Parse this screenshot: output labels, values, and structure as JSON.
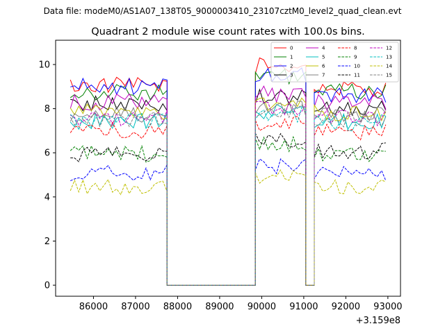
{
  "suptitle": "Data file: modeM0/AS1A07_138T05_9000003410_23107cztM0_level2_quad_clean.evt",
  "chart_data": {
    "type": "line",
    "title": "Quadrant 2 module wise count rates with 100.0s bins.",
    "xlabel": "",
    "ylabel": "",
    "x_offset_label": "+3.159e8",
    "x_tick_values": [
      86000,
      87000,
      88000,
      89000,
      90000,
      91000,
      92000,
      93000
    ],
    "x_tick_labels": [
      "86000",
      "87000",
      "88000",
      "89000",
      "90000",
      "91000",
      "92000",
      "93000"
    ],
    "y_tick_values": [
      0,
      2,
      4,
      6,
      8,
      10
    ],
    "y_tick_labels": [
      "0",
      "2",
      "4",
      "6",
      "8",
      "10"
    ],
    "xlim": [
      85100,
      93300
    ],
    "ylim": [
      -0.5,
      11.1
    ],
    "grid": false,
    "legend": "top-right",
    "legend_columns": 4,
    "bin_size": 100,
    "segments": [
      {
        "start": 85450,
        "end": 87750
      },
      {
        "start": 87750,
        "end": 89850
      },
      {
        "start": 89850,
        "end": 91050
      },
      {
        "start": 91050,
        "end": 91250
      },
      {
        "start": 91250,
        "end": 92950
      }
    ],
    "series": [
      {
        "name": "0",
        "color": "#ff0000",
        "dash": "solid",
        "levels": [
          9.05,
          0,
          9.95,
          0,
          8.9
        ]
      },
      {
        "name": "1",
        "color": "#008000",
        "dash": "solid",
        "levels": [
          8.75,
          0,
          9.45,
          0,
          8.75
        ]
      },
      {
        "name": "2",
        "color": "#0000ff",
        "dash": "solid",
        "levels": [
          9.0,
          0,
          9.5,
          0,
          8.65
        ]
      },
      {
        "name": "3",
        "color": "#000000",
        "dash": "solid",
        "levels": [
          8.2,
          0,
          8.5,
          0,
          8.05
        ]
      },
      {
        "name": "4",
        "color": "#bf00bf",
        "dash": "solid",
        "levels": [
          8.3,
          0,
          8.65,
          0,
          8.3
        ]
      },
      {
        "name": "5",
        "color": "#00bfbf",
        "dash": "solid",
        "levels": [
          7.45,
          0,
          7.9,
          0,
          7.4
        ]
      },
      {
        "name": "6",
        "color": "#bfbf00",
        "dash": "solid",
        "levels": [
          7.85,
          0,
          8.2,
          0,
          7.8
        ]
      },
      {
        "name": "7",
        "color": "#808080",
        "dash": "solid",
        "levels": [
          7.75,
          0,
          8.0,
          0,
          7.75
        ]
      },
      {
        "name": "8",
        "color": "#ff0000",
        "dash": "dashed",
        "levels": [
          7.0,
          0,
          7.35,
          0,
          6.95
        ]
      },
      {
        "name": "9",
        "color": "#008000",
        "dash": "dashed",
        "levels": [
          5.95,
          0,
          6.4,
          0,
          5.9
        ]
      },
      {
        "name": "10",
        "color": "#0000ff",
        "dash": "dashed",
        "levels": [
          5.1,
          0,
          5.35,
          0,
          5.1
        ]
      },
      {
        "name": "11",
        "color": "#000000",
        "dash": "dashed",
        "levels": [
          5.9,
          0,
          6.6,
          0,
          6.1
        ]
      },
      {
        "name": "12",
        "color": "#bf00bf",
        "dash": "dashed",
        "levels": [
          7.6,
          0,
          8.0,
          0,
          7.6
        ]
      },
      {
        "name": "13",
        "color": "#00bfbf",
        "dash": "dashed",
        "levels": [
          7.4,
          0,
          7.75,
          0,
          7.35
        ]
      },
      {
        "name": "14",
        "color": "#bfbf00",
        "dash": "dashed",
        "levels": [
          4.45,
          0,
          4.85,
          0,
          4.5
        ]
      },
      {
        "name": "15",
        "color": "#808080",
        "dash": "dashed",
        "levels": [
          7.55,
          0,
          7.95,
          0,
          7.5
        ]
      }
    ]
  }
}
